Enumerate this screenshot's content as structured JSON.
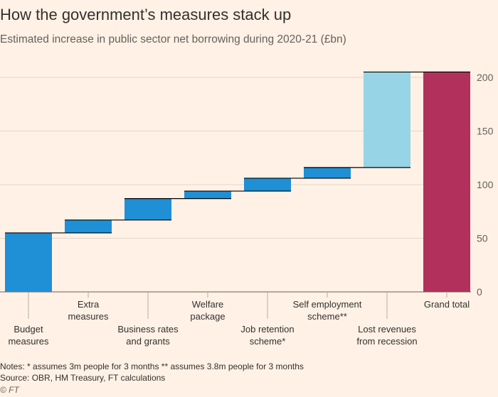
{
  "title": "How the government’s measures stack up",
  "subtitle": "Estimated increase in public sector net borrowing during 2020-21 (£bn)",
  "notes": "Notes: * assumes 3m people for 3 months  ** assumes 3.8m people for 3 months",
  "source": "Source: OBR, HM Treasury, FT calculations",
  "copyright": "© FT",
  "colors": {
    "measures": "#1F8FD6",
    "recession": "#96D4E6",
    "total": "#B1315C",
    "grid": "#E3D6CB",
    "connector": "#000000"
  },
  "chart_data": {
    "type": "bar",
    "subtype": "waterfall",
    "title": "How the government’s measures stack up",
    "subtitle": "Estimated increase in public sector net borrowing during 2020-21 (£bn)",
    "ylim": [
      0,
      200
    ],
    "yticks": [
      0,
      50,
      100,
      150,
      200
    ],
    "yaxis_position": "right",
    "grid": true,
    "categories": [
      [
        "Budget",
        "measures"
      ],
      [
        "Extra",
        "measures"
      ],
      [
        "Business rates",
        "and grants"
      ],
      [
        "Welfare",
        "package"
      ],
      [
        "Job retention",
        "scheme*"
      ],
      [
        "Self employment",
        "scheme**"
      ],
      [
        "Lost revenues",
        "from recession"
      ],
      [
        "Grand total"
      ]
    ],
    "label_position": [
      "low",
      "high",
      "low",
      "high",
      "low",
      "high",
      "low",
      "high"
    ],
    "bars": [
      {
        "start": 0,
        "end": 55,
        "kind": "measures"
      },
      {
        "start": 55,
        "end": 67,
        "kind": "measures"
      },
      {
        "start": 67,
        "end": 87,
        "kind": "measures"
      },
      {
        "start": 87,
        "end": 94,
        "kind": "measures"
      },
      {
        "start": 94,
        "end": 106,
        "kind": "measures"
      },
      {
        "start": 106,
        "end": 116,
        "kind": "measures"
      },
      {
        "start": 116,
        "end": 205,
        "kind": "recession"
      },
      {
        "start": 0,
        "end": 205,
        "kind": "total"
      }
    ]
  }
}
